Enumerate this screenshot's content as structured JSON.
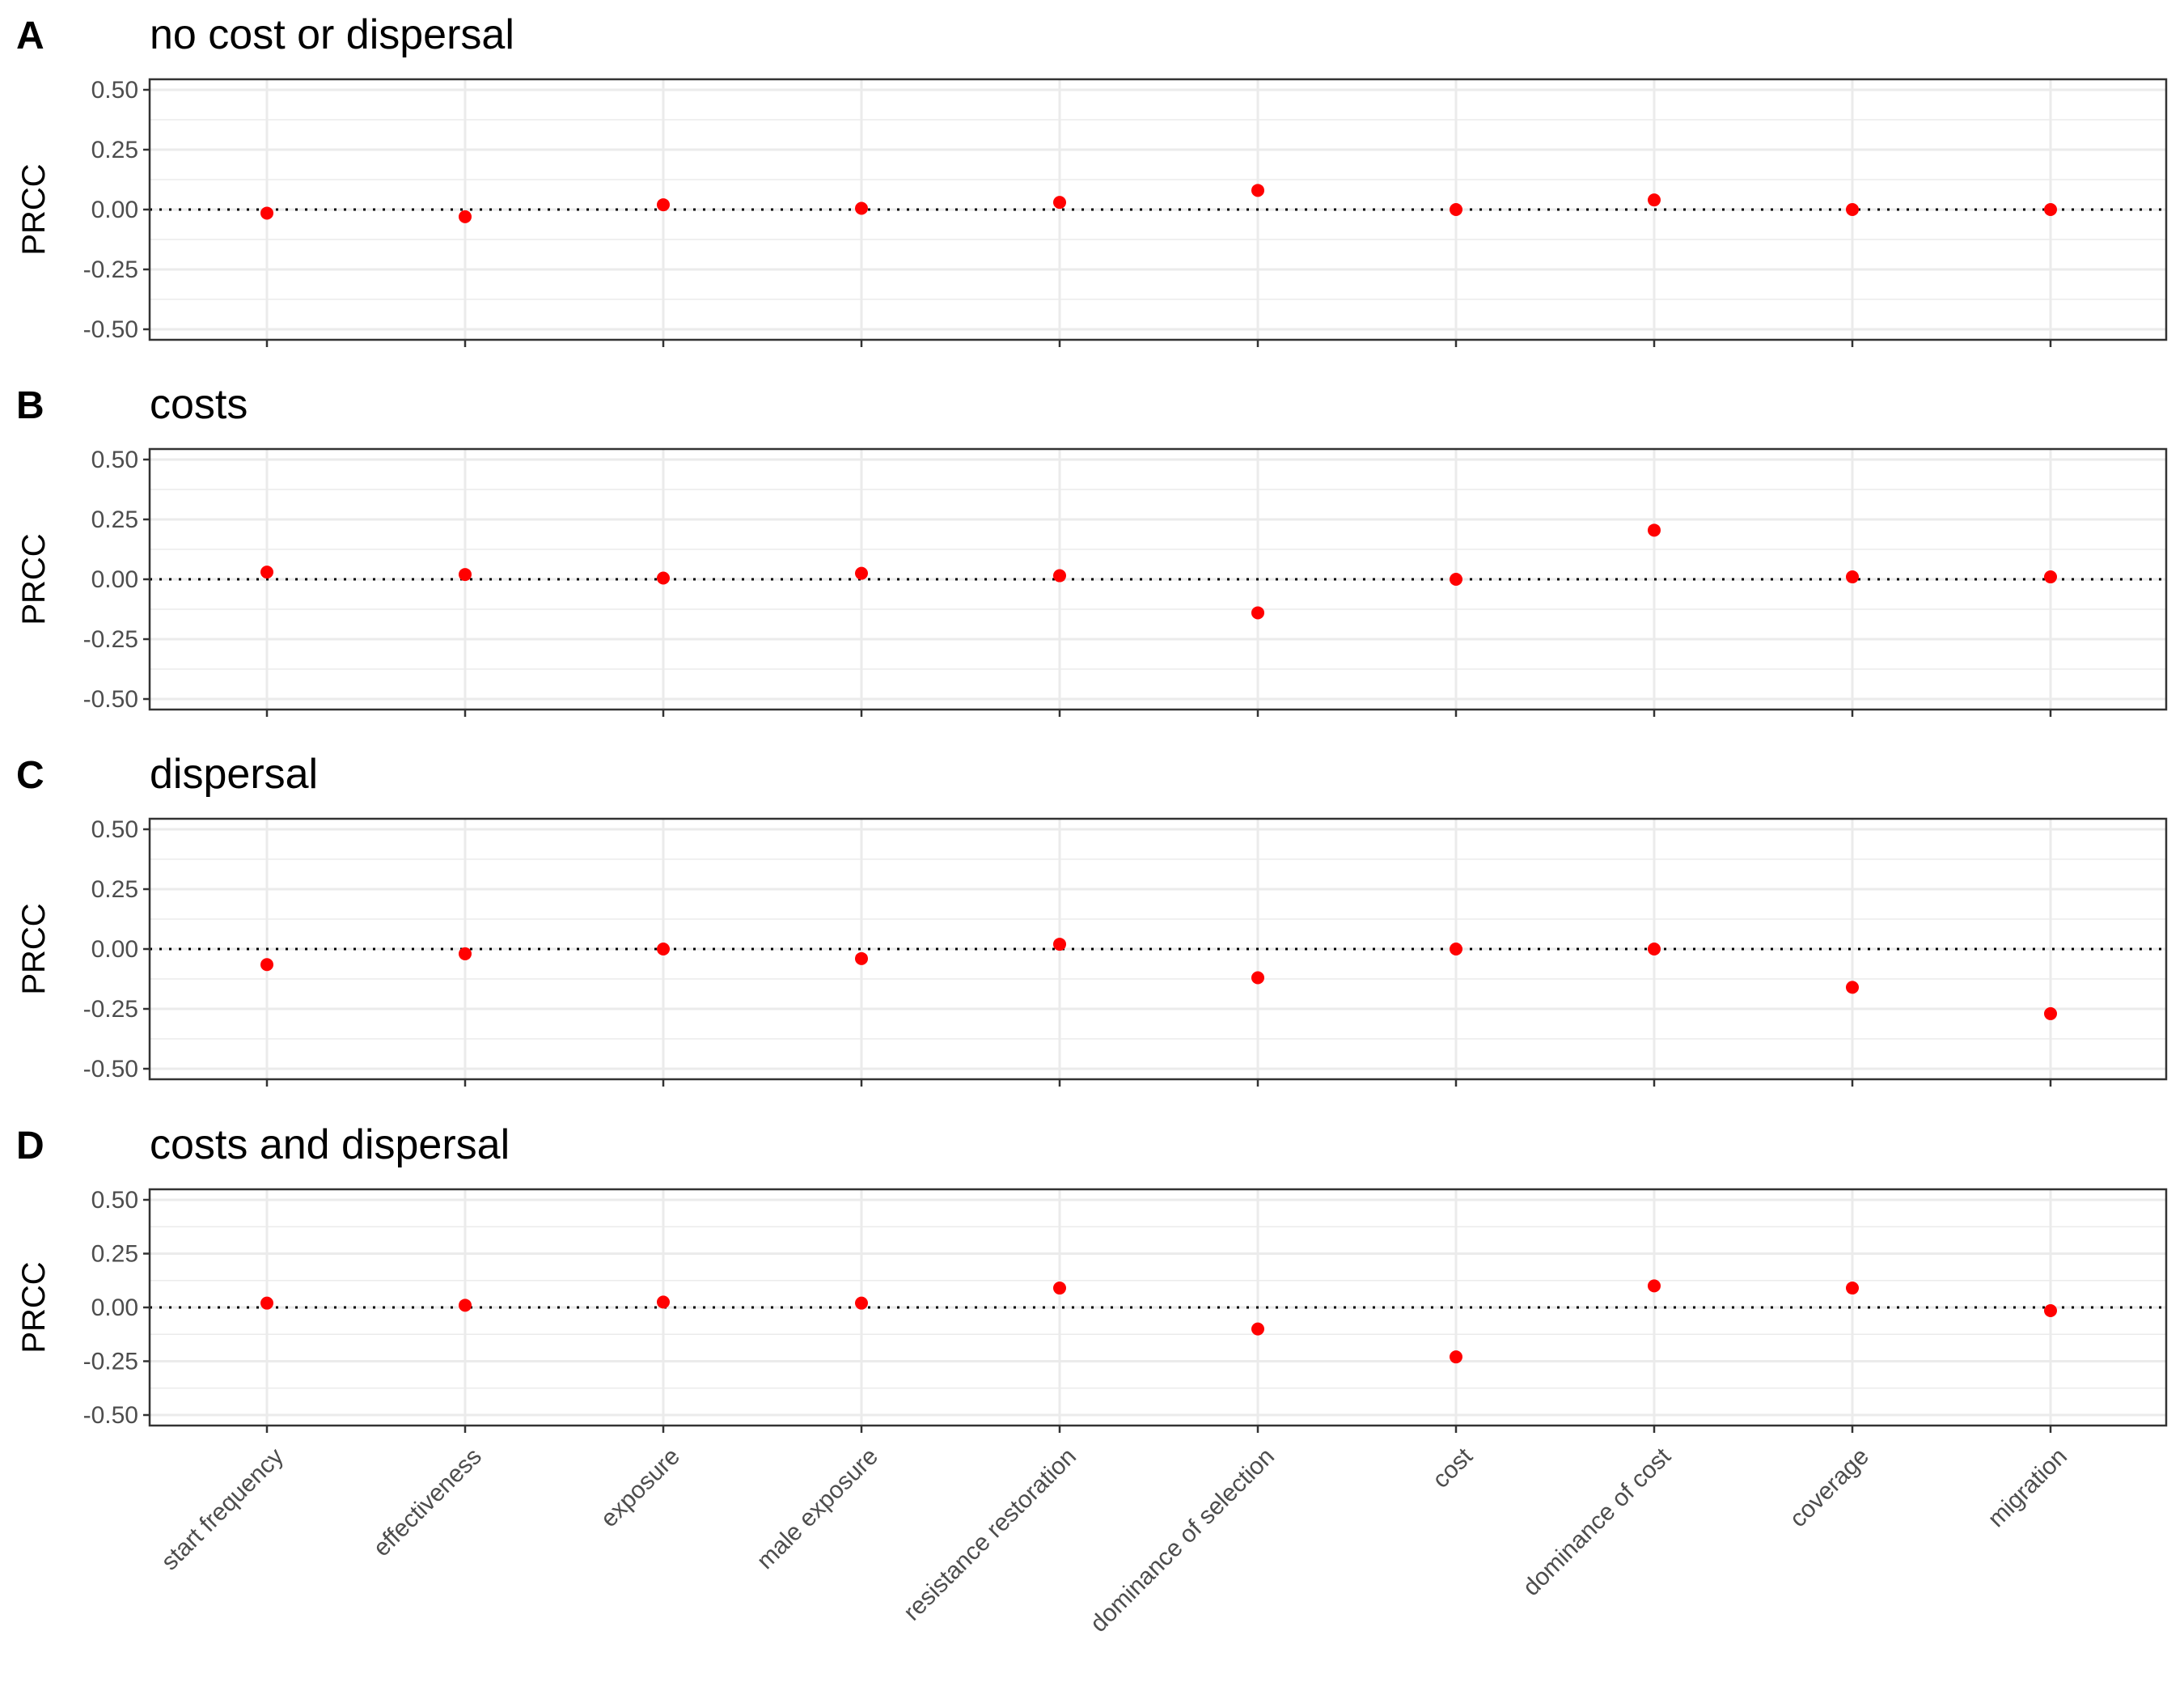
{
  "chart_data": [
    {
      "type": "scatter",
      "letter": "A",
      "title": "no cost or dispersal",
      "ylabel": "PRCC",
      "ylim": [
        -0.5,
        0.5
      ],
      "yticks": [
        "0.50",
        "0.25",
        "0.00",
        "-0.25",
        "-0.50"
      ],
      "categories": [
        "start frequency",
        "effectiveness",
        "exposure",
        "male exposure",
        "resistance restoration",
        "dominance of selection",
        "cost",
        "dominance of cost",
        "coverage",
        "migration"
      ],
      "values": [
        -0.015,
        -0.03,
        0.02,
        0.005,
        0.03,
        0.08,
        0.0,
        0.04,
        0.0,
        0.0
      ],
      "reference_line": 0,
      "grid": true
    },
    {
      "type": "scatter",
      "letter": "B",
      "title": "costs",
      "ylabel": "PRCC",
      "ylim": [
        -0.5,
        0.5
      ],
      "yticks": [
        "0.50",
        "0.25",
        "0.00",
        "-0.25",
        "-0.50"
      ],
      "categories": [
        "start frequency",
        "effectiveness",
        "exposure",
        "male exposure",
        "resistance restoration",
        "dominance of selection",
        "cost",
        "dominance of cost",
        "coverage",
        "migration"
      ],
      "values": [
        0.03,
        0.02,
        0.005,
        0.025,
        0.015,
        -0.14,
        0.0,
        0.205,
        0.01,
        0.01
      ],
      "reference_line": 0,
      "grid": true
    },
    {
      "type": "scatter",
      "letter": "C",
      "title": "dispersal",
      "ylabel": "PRCC",
      "ylim": [
        -0.5,
        0.5
      ],
      "yticks": [
        "0.50",
        "0.25",
        "0.00",
        "-0.25",
        "-0.50"
      ],
      "categories": [
        "start frequency",
        "effectiveness",
        "exposure",
        "male exposure",
        "resistance restoration",
        "dominance of selection",
        "cost",
        "dominance of cost",
        "coverage",
        "migration"
      ],
      "values": [
        -0.065,
        -0.02,
        0.0,
        -0.04,
        0.02,
        -0.12,
        0.0,
        0.0,
        -0.16,
        -0.27
      ],
      "reference_line": 0,
      "grid": true
    },
    {
      "type": "scatter",
      "letter": "D",
      "title": "costs and dispersal",
      "ylabel": "PRCC",
      "ylim": [
        -0.5,
        0.5
      ],
      "yticks": [
        "0.50",
        "0.25",
        "0.00",
        "-0.25",
        "-0.50"
      ],
      "categories": [
        "start frequency",
        "effectiveness",
        "exposure",
        "male exposure",
        "resistance restoration",
        "dominance of selection",
        "cost",
        "dominance of cost",
        "coverage",
        "migration"
      ],
      "values": [
        0.02,
        0.01,
        0.025,
        0.02,
        0.09,
        -0.1,
        -0.23,
        0.1,
        0.09,
        -0.015
      ],
      "reference_line": 0,
      "grid": true
    }
  ],
  "colors": {
    "point": "#ff0000",
    "grid": "#ebebeb",
    "panel_border": "#333333",
    "tick_text": "#4d4d4d",
    "reference_line": "#000000"
  }
}
